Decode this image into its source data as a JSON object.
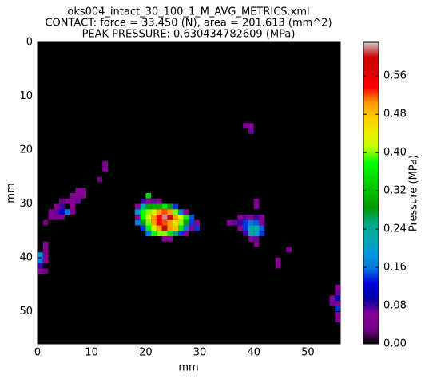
{
  "chart_data": {
    "type": "heatmap",
    "title": [
      "oks004_intact_30_100_1_M_AVG_METRICS.xml",
      "CONTACT: force = 33.450 (N), area = 201.613 (mm^2)",
      "PEAK PRESSURE: 0.630434782609 (MPa)"
    ],
    "xlabel": "mm",
    "ylabel": "mm",
    "zlabel": "Pressure (MPa)",
    "colormap": "nipy_spectral",
    "xlim": [
      0,
      56
    ],
    "ylim": [
      56,
      0
    ],
    "zlim": [
      0,
      0.630434782609
    ],
    "xticks": [
      0,
      10,
      20,
      30,
      40,
      50
    ],
    "yticks": [
      0,
      10,
      20,
      30,
      40,
      50
    ],
    "zticks": [
      {
        "value": 0,
        "label": "0.00"
      },
      {
        "value": 0.08,
        "label": "0.08"
      },
      {
        "value": 0.16,
        "label": "0.16"
      },
      {
        "value": 0.24,
        "label": "0.24"
      },
      {
        "value": 0.32,
        "label": "0.32"
      },
      {
        "value": 0.4,
        "label": "0.40"
      },
      {
        "value": 0.48,
        "label": "0.48"
      },
      {
        "value": 0.56,
        "label": "0.56"
      }
    ],
    "x": [
      38,
      39,
      39,
      12,
      12,
      11,
      7,
      8,
      6,
      7,
      8,
      4,
      5,
      6,
      7,
      3,
      4,
      6,
      2,
      3,
      4,
      5,
      6,
      2,
      3,
      4,
      1,
      1,
      1,
      0,
      1,
      0,
      1,
      0,
      0,
      1,
      20,
      19,
      20,
      21,
      22,
      18,
      19,
      20,
      21,
      22,
      23,
      24,
      25,
      18,
      19,
      20,
      21,
      22,
      23,
      24,
      25,
      26,
      27,
      18,
      19,
      20,
      21,
      22,
      23,
      24,
      25,
      26,
      27,
      28,
      18,
      19,
      20,
      21,
      22,
      23,
      24,
      25,
      26,
      27,
      28,
      29,
      19,
      20,
      21,
      22,
      23,
      24,
      25,
      26,
      27,
      28,
      29,
      20,
      21,
      22,
      23,
      24,
      25,
      26,
      27,
      23,
      24,
      40,
      40,
      37,
      38,
      39,
      40,
      41,
      35,
      36,
      37,
      38,
      39,
      40,
      41,
      37,
      38,
      39,
      40,
      41,
      38,
      39,
      40,
      41,
      39,
      40,
      40,
      46,
      44,
      44,
      55,
      55,
      54,
      55,
      54,
      55,
      55,
      55,
      55
    ],
    "y": [
      15,
      15,
      16,
      22,
      23,
      25,
      27,
      27,
      28,
      28,
      28,
      29,
      29,
      29,
      29,
      30,
      30,
      30,
      31,
      31,
      31,
      31,
      31,
      32,
      32,
      32,
      33,
      37,
      38,
      39,
      39,
      40,
      40,
      41,
      42,
      42,
      28,
      29,
      29,
      29,
      29,
      30,
      30,
      30,
      30,
      30,
      30,
      30,
      30,
      31,
      31,
      31,
      31,
      31,
      31,
      31,
      31,
      31,
      31,
      32,
      32,
      32,
      32,
      32,
      32,
      32,
      32,
      32,
      32,
      32,
      33,
      33,
      33,
      33,
      33,
      33,
      33,
      33,
      33,
      33,
      33,
      33,
      34,
      34,
      34,
      34,
      34,
      34,
      34,
      34,
      34,
      34,
      34,
      35,
      35,
      35,
      35,
      35,
      35,
      35,
      35,
      36,
      36,
      29,
      30,
      32,
      32,
      32,
      32,
      32,
      33,
      33,
      33,
      33,
      33,
      33,
      33,
      34,
      34,
      34,
      34,
      34,
      35,
      35,
      35,
      35,
      36,
      36,
      37,
      38,
      40,
      41,
      45,
      46,
      47,
      47,
      48,
      48,
      49,
      50,
      51
    ],
    "values": [
      0.05,
      0.06,
      0.07,
      0.04,
      0.05,
      0.03,
      0.05,
      0.06,
      0.05,
      0.06,
      0.05,
      0.03,
      0.05,
      0.06,
      0.07,
      0.06,
      0.08,
      0.05,
      0.05,
      0.07,
      0.12,
      0.16,
      0.05,
      0.06,
      0.05,
      0.04,
      0.03,
      0.06,
      0.05,
      0.18,
      0.05,
      0.16,
      0.06,
      0.08,
      0.06,
      0.03,
      0.34,
      0.08,
      0.06,
      0.07,
      0.05,
      0.06,
      0.22,
      0.3,
      0.3,
      0.3,
      0.36,
      0.28,
      0.14,
      0.18,
      0.38,
      0.4,
      0.42,
      0.5,
      0.52,
      0.5,
      0.4,
      0.16,
      0.06,
      0.06,
      0.38,
      0.42,
      0.5,
      0.54,
      0.62,
      0.6,
      0.5,
      0.42,
      0.38,
      0.15,
      0.16,
      0.28,
      0.4,
      0.5,
      0.55,
      0.52,
      0.5,
      0.46,
      0.4,
      0.3,
      0.14,
      0.05,
      0.14,
      0.36,
      0.42,
      0.5,
      0.6,
      0.5,
      0.48,
      0.36,
      0.16,
      0.06,
      0.14,
      0.16,
      0.38,
      0.4,
      0.4,
      0.36,
      0.26,
      0.14,
      0.06,
      0.05,
      0.06,
      0.04,
      0.05,
      0.06,
      0.07,
      0.06,
      0.08,
      0.05,
      0.06,
      0.07,
      0.08,
      0.14,
      0.16,
      0.15,
      0.06,
      0.06,
      0.14,
      0.22,
      0.22,
      0.15,
      0.08,
      0.22,
      0.2,
      0.14,
      0.06,
      0.07,
      0.05,
      0.04,
      0.06,
      0.05,
      0.06,
      0.07,
      0.06,
      0.1,
      0.07,
      0.05,
      0.14,
      0.06,
      0.05
    ]
  }
}
